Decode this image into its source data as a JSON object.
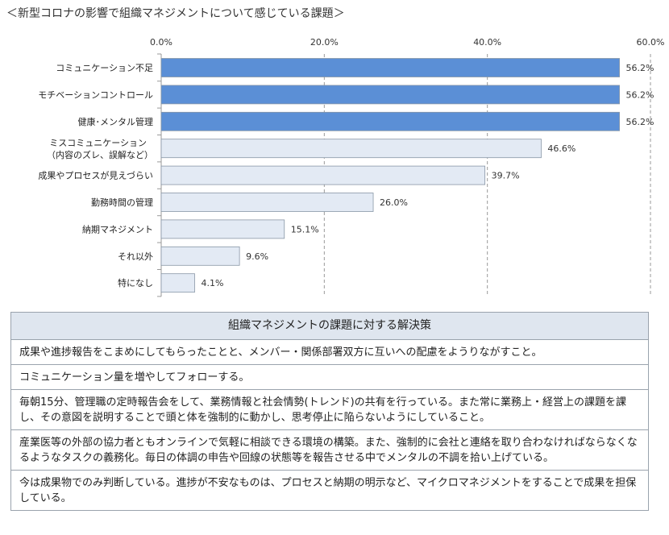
{
  "title": "＜新型コロナの影響で組織マネジメントについて感じている課題＞",
  "chart_data": {
    "type": "bar",
    "orientation": "horizontal",
    "categories": [
      [
        "コミュニケーション不足"
      ],
      [
        "モチベーションコントロール"
      ],
      [
        "健康･メンタル管理"
      ],
      [
        "ミスコミュニケーション",
        "（内容のズレ、誤解など）"
      ],
      [
        "成果やプロセスが見えづらい"
      ],
      [
        "勤務時間の管理"
      ],
      [
        "納期マネジメント"
      ],
      [
        "それ以外"
      ],
      [
        "特になし"
      ]
    ],
    "values": [
      56.2,
      56.2,
      56.2,
      46.6,
      39.7,
      26.0,
      15.1,
      9.6,
      4.1
    ],
    "value_labels": [
      "56.2%",
      "56.2%",
      "56.2%",
      "46.6%",
      "39.7%",
      "26.0%",
      "15.1%",
      "9.6%",
      "4.1%"
    ],
    "xlim": [
      0,
      60
    ],
    "ticks": [
      0,
      20,
      40,
      60
    ],
    "tick_labels": [
      "0.0%",
      "20.0%",
      "40.0%",
      "60.0%"
    ],
    "highlight_count": 3,
    "grid": "dashed vertical",
    "colors": {
      "highlight": "#5b8fd6",
      "normal": "#e3eaf4",
      "edge": "#8896a6",
      "grid": "#9a9a9a"
    }
  },
  "solutions": {
    "header": "組織マネジメントの課題に対する解決策",
    "items": [
      "成果や進捗報告をこまめにしてもらったことと、メンバー・関係部署双方に互いへの配慮をようりながすこと。",
      "コミュニケーション量を増やしてフォローする。",
      "毎朝15分、管理職の定時報告会をして、業務情報と社会情勢(トレンド)の共有を行っている。また常に業務上・経営上の課題を課し、その意図を説明することで頭と体を強制的に動かし、思考停止に陥らないようにしていること。",
      "産業医等の外部の協力者ともオンラインで気軽に相談できる環境の構築。また、強制的に会社と連絡を取り合わなければならなくなるようなタスクの義務化。毎日の体調の申告や回線の状態等を報告させる中でメンタルの不調を拾い上げている。",
      "今は成果物でのみ判断している。進捗が不安なものは、プロセスと納期の明示など、マイクロマネジメントをすることで成果を担保している。"
    ]
  }
}
